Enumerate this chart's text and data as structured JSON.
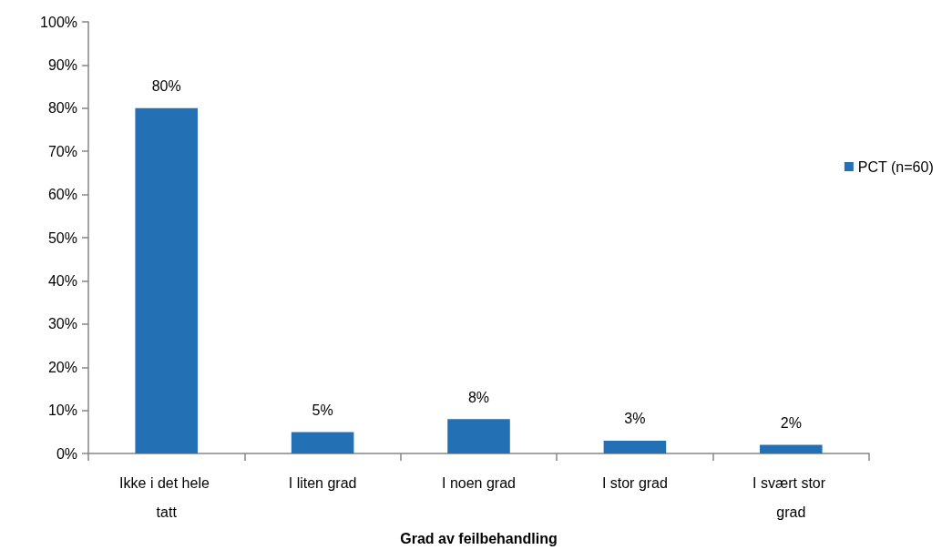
{
  "chart_data": {
    "type": "bar",
    "xlabel": "Grad av feilbehandling",
    "categories": [
      "Ikke i det hele tatt",
      "I liten grad",
      "I noen grad",
      "I stor grad",
      "I svært stor grad"
    ],
    "series": [
      {
        "name": "PCT (n=60)",
        "color": "#2470b5",
        "values": [
          80,
          5,
          8,
          3,
          2
        ],
        "value_labels": [
          "80%",
          "5%",
          "8%",
          "3%",
          "2%"
        ]
      }
    ],
    "ylim": [
      0,
      100
    ],
    "yticks": [
      {
        "value": 0,
        "label": "0%"
      },
      {
        "value": 10,
        "label": "10%"
      },
      {
        "value": 20,
        "label": "20%"
      },
      {
        "value": 30,
        "label": "30%"
      },
      {
        "value": 40,
        "label": "40%"
      },
      {
        "value": 50,
        "label": "50%"
      },
      {
        "value": 60,
        "label": "60%"
      },
      {
        "value": 70,
        "label": "70%"
      },
      {
        "value": 80,
        "label": "80%"
      },
      {
        "value": 90,
        "label": "90%"
      },
      {
        "value": 100,
        "label": "100%"
      }
    ],
    "legend": "right"
  }
}
